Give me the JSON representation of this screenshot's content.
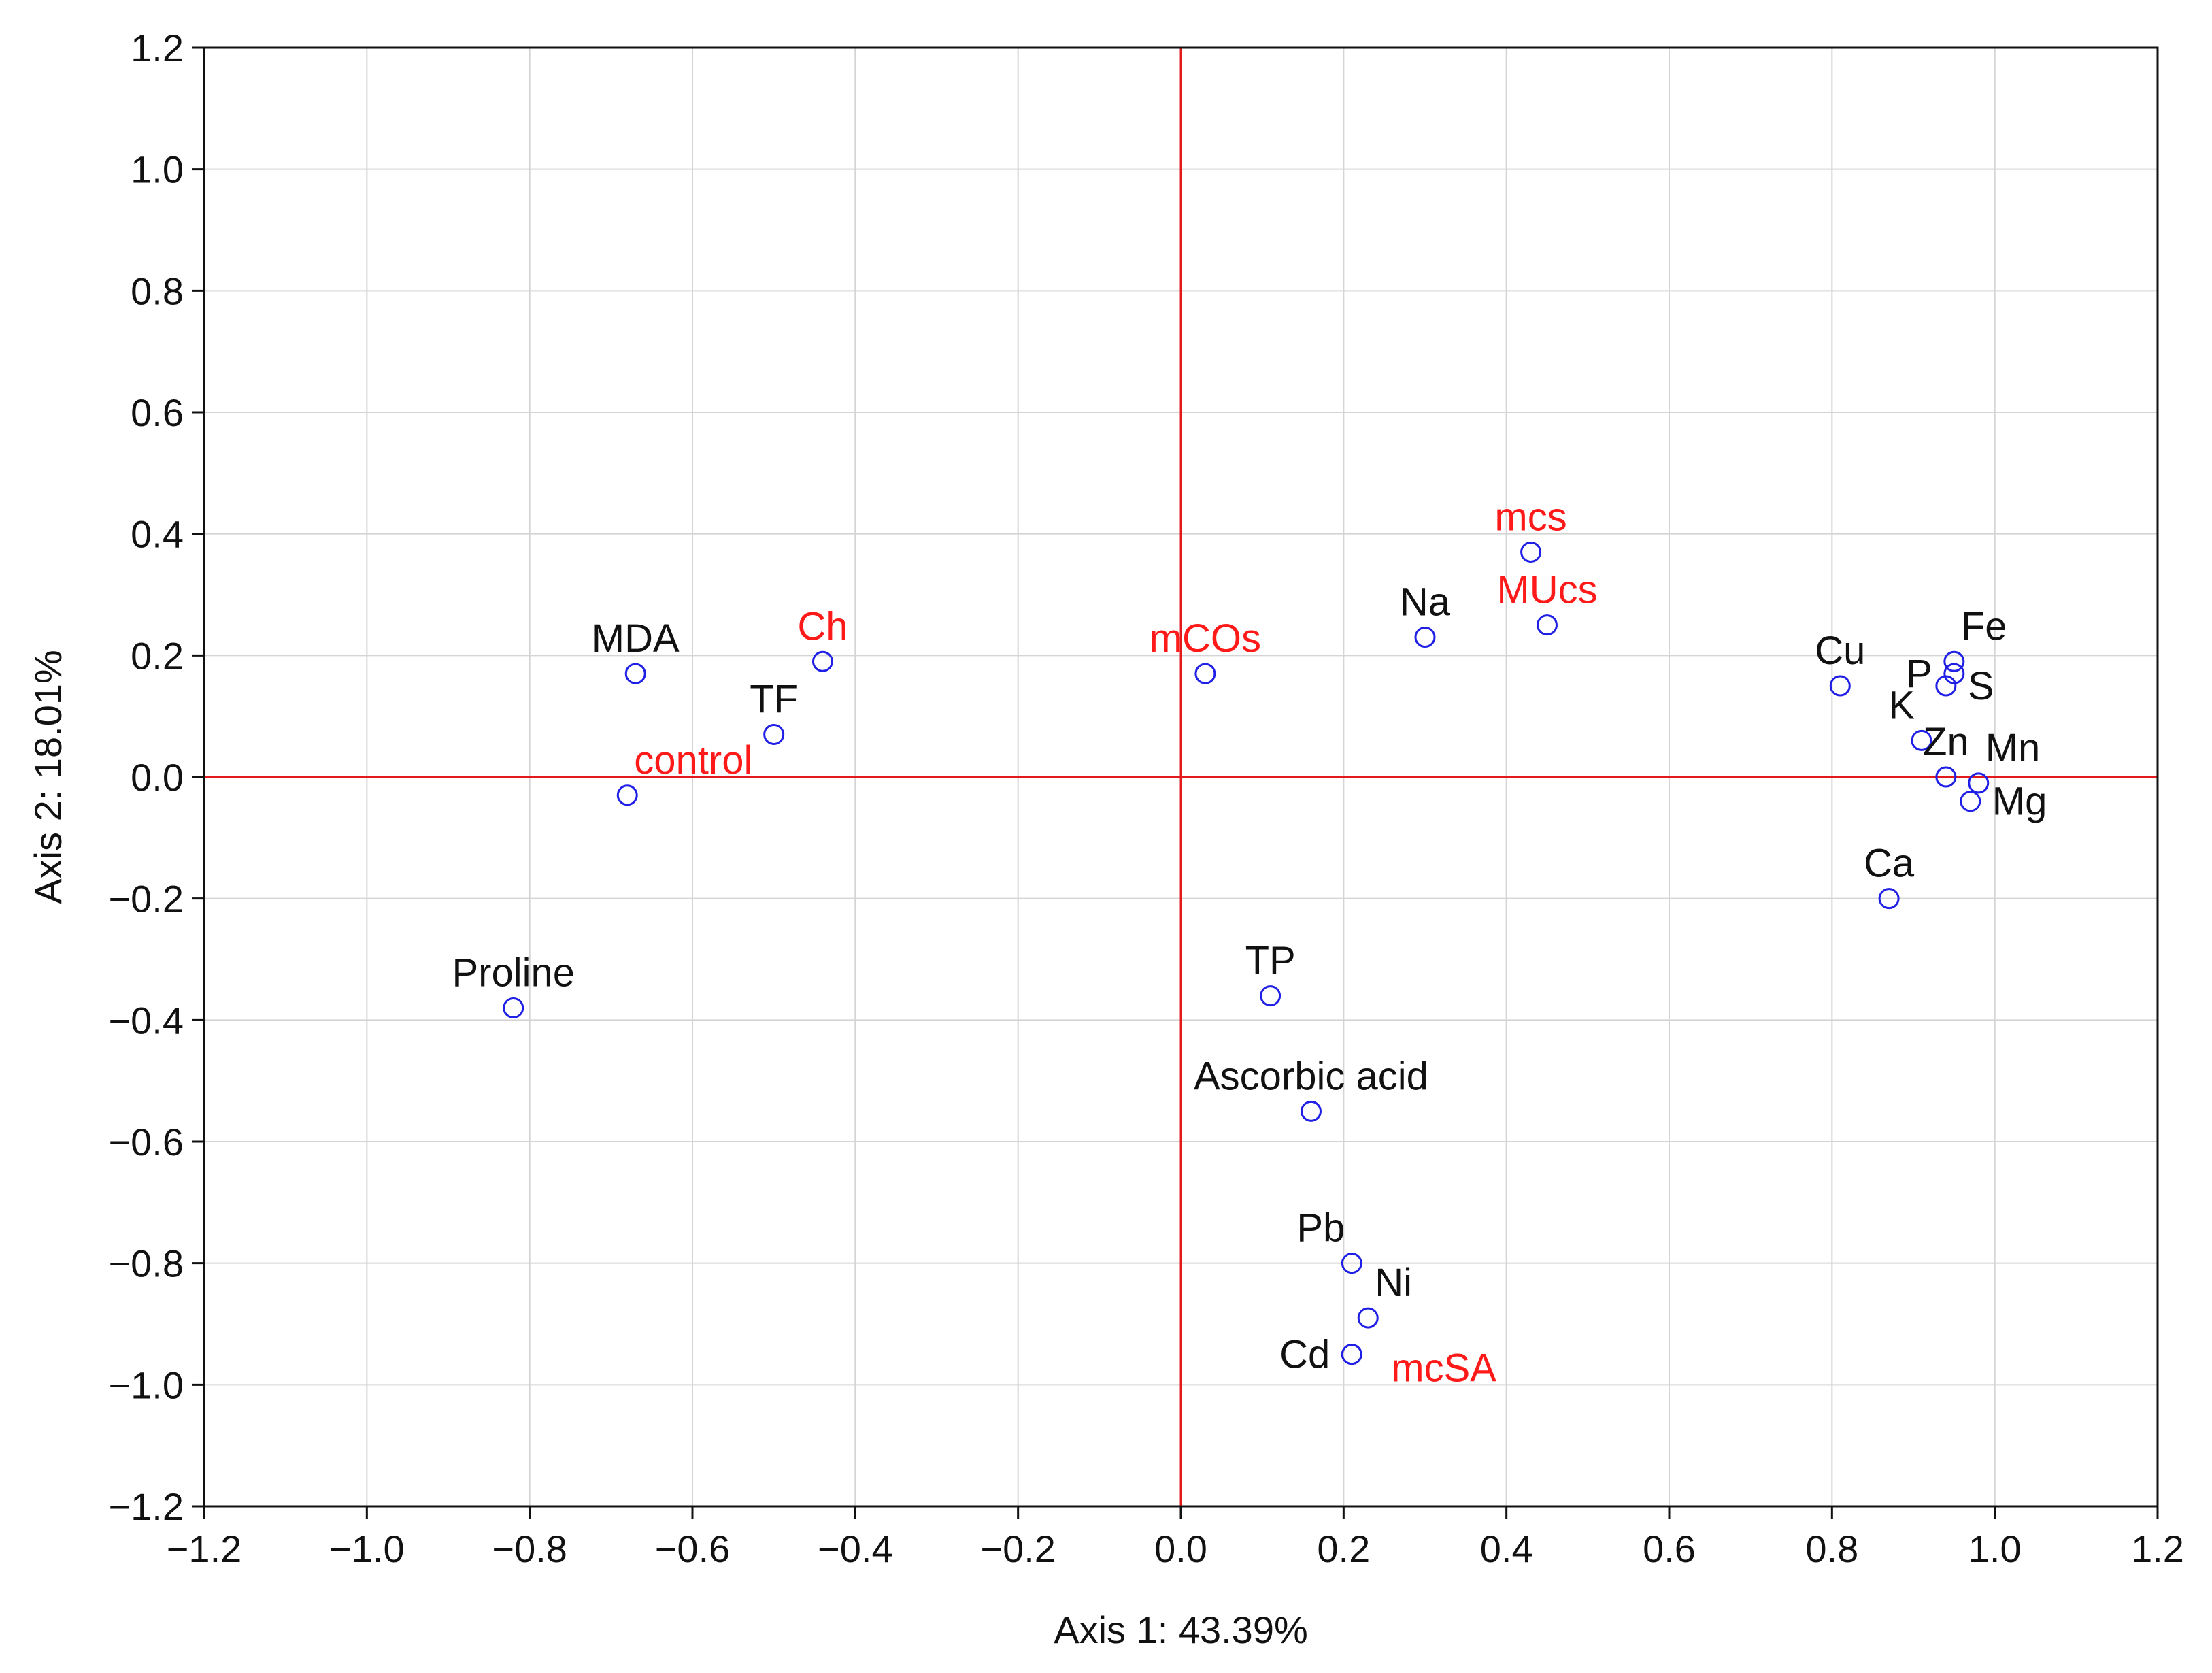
{
  "chart_data": {
    "type": "scatter",
    "title": "",
    "xlabel": "Axis 1: 43.39%",
    "ylabel": "Axis 2: 18.01%",
    "xlim": [
      -1.2,
      1.2
    ],
    "ylim": [
      -1.2,
      1.2
    ],
    "xticks": [
      "−1.2",
      "−1.0",
      "−0.8",
      "−0.6",
      "−0.4",
      "−0.2",
      "0.0",
      "0.2",
      "0.4",
      "0.6",
      "0.8",
      "1.0",
      "1.2"
    ],
    "yticks": [
      "−1.2",
      "−1.0",
      "−0.8",
      "−0.6",
      "−0.4",
      "−0.2",
      "0.0",
      "0.2",
      "0.4",
      "0.6",
      "0.8",
      "1.0",
      "1.2"
    ],
    "xtick_values": [
      -1.2,
      -1.0,
      -0.8,
      -0.6,
      -0.4,
      -0.2,
      0.0,
      0.2,
      0.4,
      0.6,
      0.8,
      1.0,
      1.2
    ],
    "ytick_values": [
      -1.2,
      -1.0,
      -0.8,
      -0.6,
      -0.4,
      -0.2,
      0.0,
      0.2,
      0.4,
      0.6,
      0.8,
      1.0,
      1.2
    ],
    "grid": true,
    "reference_lines": {
      "x": 0.0,
      "y": 0.0,
      "color": "#e31a1c"
    },
    "marker_color": "#1f1fe6",
    "variable_label_color": "#111111",
    "treatment_label_color": "#ff1a1a",
    "points": [
      {
        "name": "MDA",
        "x": -0.67,
        "y": 0.17,
        "group": "variable",
        "anchor": "above"
      },
      {
        "name": "Ch",
        "x": -0.44,
        "y": 0.19,
        "group": "treatment",
        "anchor": "above"
      },
      {
        "name": "TF",
        "x": -0.5,
        "y": 0.07,
        "group": "variable",
        "anchor": "above"
      },
      {
        "name": "control",
        "x": -0.68,
        "y": -0.03,
        "group": "treatment",
        "anchor": "above-right"
      },
      {
        "name": "Proline",
        "x": -0.82,
        "y": -0.38,
        "group": "variable",
        "anchor": "above"
      },
      {
        "name": "mCOs",
        "x": 0.03,
        "y": 0.17,
        "group": "treatment",
        "anchor": "above"
      },
      {
        "name": "Na",
        "x": 0.3,
        "y": 0.23,
        "group": "variable",
        "anchor": "above"
      },
      {
        "name": "mcs",
        "x": 0.43,
        "y": 0.37,
        "group": "treatment",
        "anchor": "above"
      },
      {
        "name": "MUcs",
        "x": 0.45,
        "y": 0.25,
        "group": "treatment",
        "anchor": "above"
      },
      {
        "name": "TP",
        "x": 0.11,
        "y": -0.36,
        "group": "variable",
        "anchor": "above"
      },
      {
        "name": "Ascorbic acid",
        "x": 0.16,
        "y": -0.55,
        "group": "variable",
        "anchor": "above"
      },
      {
        "name": "Pb",
        "x": 0.21,
        "y": -0.8,
        "group": "variable",
        "anchor": "above-left"
      },
      {
        "name": "Ni",
        "x": 0.23,
        "y": -0.89,
        "group": "variable",
        "anchor": "above-right"
      },
      {
        "name": "Cd",
        "x": 0.21,
        "y": -0.95,
        "group": "variable",
        "anchor": "left"
      },
      {
        "name": "mcSA",
        "x": 0.21,
        "y": -0.95,
        "group": "treatment",
        "anchor": "below-right"
      },
      {
        "name": "Cu",
        "x": 0.81,
        "y": 0.15,
        "group": "variable",
        "anchor": "above"
      },
      {
        "name": "Fe",
        "x": 0.95,
        "y": 0.19,
        "group": "variable",
        "anchor": "above-right"
      },
      {
        "name": "P",
        "x": 0.95,
        "y": 0.17,
        "group": "variable",
        "anchor": "left"
      },
      {
        "name": "S",
        "x": 0.94,
        "y": 0.15,
        "group": "variable",
        "anchor": "right"
      },
      {
        "name": "K",
        "x": 0.91,
        "y": 0.06,
        "group": "variable",
        "anchor": "above-left"
      },
      {
        "name": "Zn",
        "x": 0.94,
        "y": 0.0,
        "group": "variable",
        "anchor": "above"
      },
      {
        "name": "Mn",
        "x": 0.98,
        "y": -0.01,
        "group": "variable",
        "anchor": "above-right"
      },
      {
        "name": "Mg",
        "x": 0.97,
        "y": -0.04,
        "group": "variable",
        "anchor": "right"
      },
      {
        "name": "Ca",
        "x": 0.87,
        "y": -0.2,
        "group": "variable",
        "anchor": "above"
      }
    ]
  }
}
